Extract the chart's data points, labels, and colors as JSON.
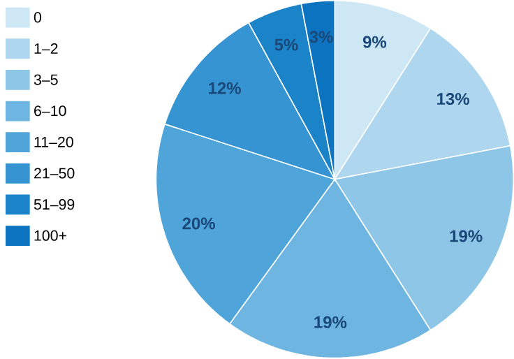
{
  "chart_data": {
    "type": "pie",
    "categories": [
      "0",
      "1–2",
      "3–5",
      "6–10",
      "11–20",
      "21–50",
      "51–99",
      "100+"
    ],
    "values": [
      9,
      13,
      19,
      19,
      20,
      12,
      5,
      3
    ],
    "colors": [
      "#cde7f5",
      "#aed6ef",
      "#8ec6e8",
      "#6eb5e1",
      "#4fa4da",
      "#3594d1",
      "#1b84c8",
      "#0b73c0"
    ],
    "value_labels": [
      "9%",
      "13%",
      "19%",
      "19%",
      "20%",
      "12%",
      "5%",
      "3%"
    ],
    "legend": "left"
  }
}
